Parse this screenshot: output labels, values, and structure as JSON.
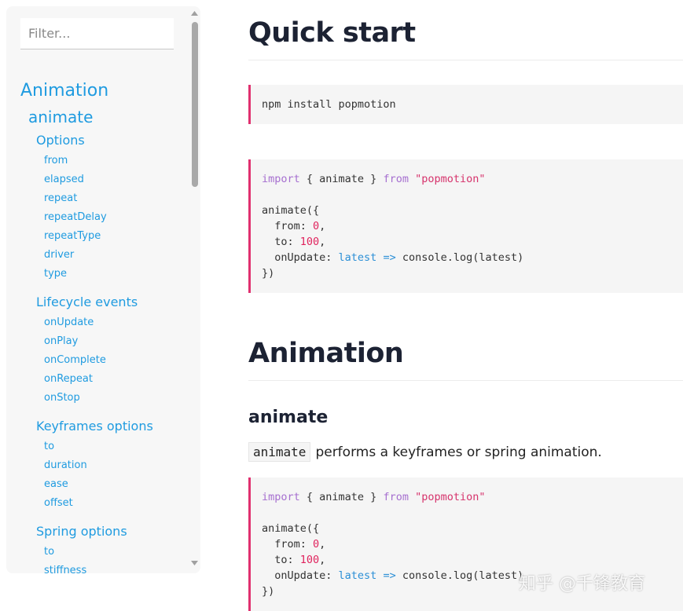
{
  "sidebar": {
    "filter_placeholder": "Filter...",
    "nav": {
      "title": "Animation",
      "items": [
        {
          "title": "animate",
          "groups": [
            {
              "title": "Options",
              "links": [
                "from",
                "elapsed",
                "repeat",
                "repeatDelay",
                "repeatType",
                "driver",
                "type"
              ]
            },
            {
              "title": "Lifecycle events",
              "links": [
                "onUpdate",
                "onPlay",
                "onComplete",
                "onRepeat",
                "onStop"
              ]
            },
            {
              "title": "Keyframes options",
              "links": [
                "to",
                "duration",
                "ease",
                "offset"
              ]
            },
            {
              "title": "Spring options",
              "links": [
                "to",
                "stiffness"
              ]
            }
          ]
        }
      ]
    }
  },
  "main": {
    "blocks": [
      {
        "type": "h1",
        "text": "Quick start"
      },
      {
        "type": "code",
        "lines": [
          [
            {
              "text": "npm install popmotion"
            }
          ]
        ]
      },
      {
        "type": "code",
        "lines": [
          [
            {
              "text": "import",
              "color": "#a66fd0"
            },
            {
              "text": " { animate } "
            },
            {
              "text": "from",
              "color": "#a66fd0"
            },
            {
              "text": " "
            },
            {
              "text": "\"popmotion\"",
              "color": "#d6336c"
            }
          ],
          [],
          [
            {
              "text": "animate({"
            }
          ],
          [
            {
              "text": "  from: "
            },
            {
              "text": "0",
              "color": "#e0245e"
            },
            {
              "text": ","
            }
          ],
          [
            {
              "text": "  to: "
            },
            {
              "text": "100",
              "color": "#e0245e"
            },
            {
              "text": ","
            }
          ],
          [
            {
              "text": "  onUpdate: "
            },
            {
              "text": "latest",
              "color": "#2b8fd6"
            },
            {
              "text": " "
            },
            {
              "text": "=>",
              "color": "#2b8fd6"
            },
            {
              "text": " console.log(latest)"
            }
          ],
          [
            {
              "text": "})"
            }
          ]
        ]
      },
      {
        "type": "h1",
        "text": "Animation"
      },
      {
        "type": "h3",
        "text": "animate"
      },
      {
        "type": "p",
        "code": "animate",
        "text": "performs a keyframes or spring animation."
      },
      {
        "type": "code",
        "lines": [
          [
            {
              "text": "import",
              "color": "#a66fd0"
            },
            {
              "text": " { animate } "
            },
            {
              "text": "from",
              "color": "#a66fd0"
            },
            {
              "text": " "
            },
            {
              "text": "\"popmotion\"",
              "color": "#d6336c"
            }
          ],
          [],
          [
            {
              "text": "animate({"
            }
          ],
          [
            {
              "text": "  from: "
            },
            {
              "text": "0",
              "color": "#e0245e"
            },
            {
              "text": ","
            }
          ],
          [
            {
              "text": "  to: "
            },
            {
              "text": "100",
              "color": "#e0245e"
            },
            {
              "text": ","
            }
          ],
          [
            {
              "text": "  onUpdate: "
            },
            {
              "text": "latest",
              "color": "#2b8fd6"
            },
            {
              "text": " "
            },
            {
              "text": "=>",
              "color": "#2b8fd6"
            },
            {
              "text": " console.log(latest)"
            }
          ],
          [
            {
              "text": "})"
            }
          ]
        ]
      }
    ]
  },
  "watermark": "知乎 @千锋教育"
}
